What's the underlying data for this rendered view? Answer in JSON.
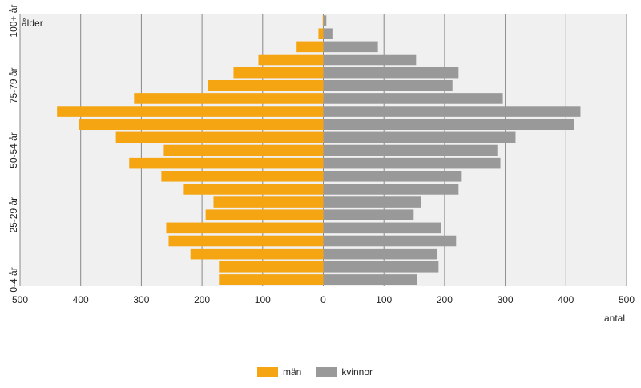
{
  "chart_data": {
    "type": "pyramid",
    "y_label": "ålder",
    "x_label": "antal",
    "categories": [
      "0-4 år",
      null,
      null,
      null,
      null,
      "25-29 år",
      null,
      null,
      null,
      null,
      "50-54 år",
      null,
      null,
      null,
      null,
      "75-79 år",
      null,
      null,
      null,
      null,
      "100+ år"
    ],
    "series": [
      {
        "name": "män",
        "color": "#f5a511",
        "values": [
          -172,
          -172,
          -219,
          -255,
          -259,
          -194,
          -181,
          -230,
          -267,
          -320,
          -263,
          -342,
          -403,
          -439,
          -312,
          -190,
          -148,
          -107,
          -44,
          -8,
          -1
        ]
      },
      {
        "name": "kvinnor",
        "color": "#999999",
        "values": [
          155,
          190,
          188,
          219,
          194,
          149,
          161,
          223,
          227,
          292,
          287,
          317,
          413,
          424,
          296,
          213,
          223,
          153,
          90,
          15,
          5
        ]
      }
    ],
    "xlim": [
      -500,
      500
    ],
    "xticks": [
      {
        "value": -500,
        "label": "500"
      },
      {
        "value": -400,
        "label": "400"
      },
      {
        "value": -300,
        "label": "300"
      },
      {
        "value": -200,
        "label": "200"
      },
      {
        "value": -100,
        "label": "100"
      },
      0,
      100,
      200,
      300,
      400,
      500
    ],
    "grid": true
  }
}
